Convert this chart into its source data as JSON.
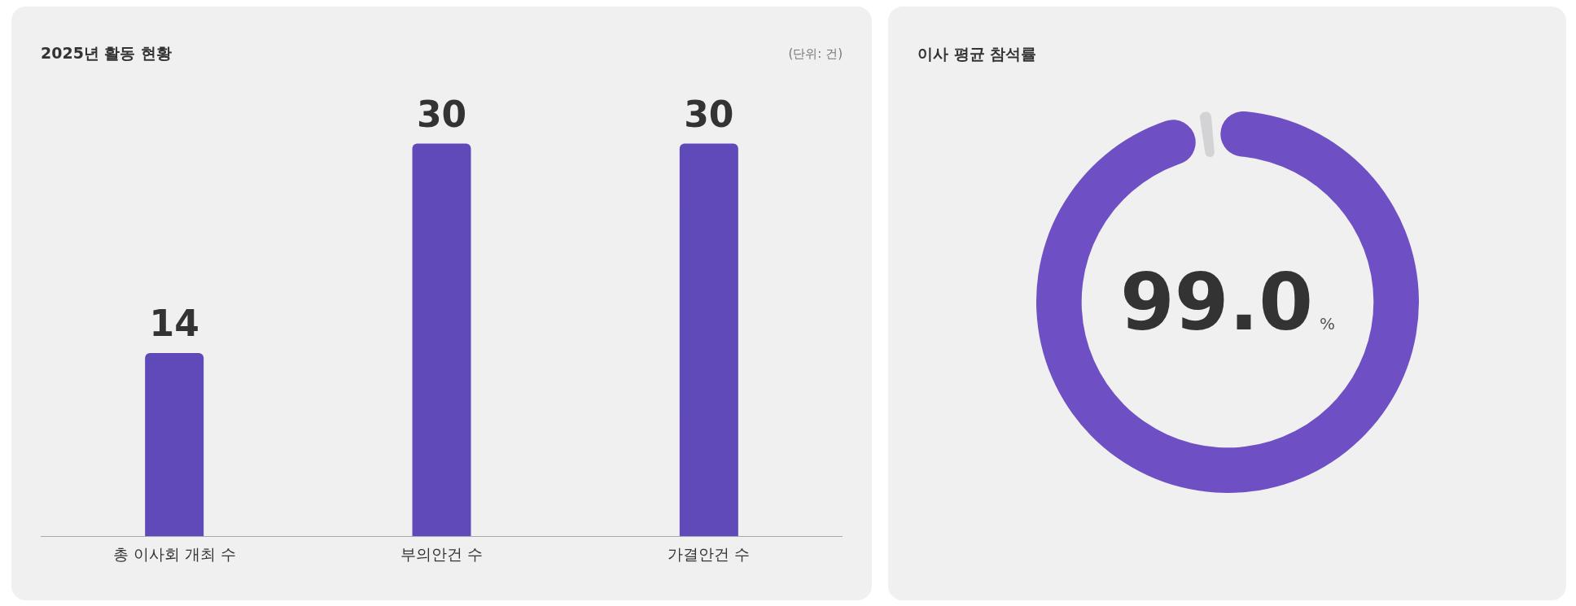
{
  "chart_data": [
    {
      "type": "bar",
      "title": "2025년 활동 현황",
      "annotations": [
        "(단위: 건)"
      ],
      "categories": [
        "총 이사회 개최 수",
        "부의안건 수",
        "가결안건 수"
      ],
      "values": [
        14,
        30,
        30
      ],
      "color": "#6049b8",
      "data_labels": true
    },
    {
      "type": "donut",
      "title": "이사 평균 참석률",
      "categories": [
        null,
        null
      ],
      "values": [
        99.0,
        1.0
      ],
      "colors": [
        "#6e4fc4",
        "#d3d3d5"
      ],
      "value_labels": [
        "99.0%",
        null
      ]
    }
  ]
}
